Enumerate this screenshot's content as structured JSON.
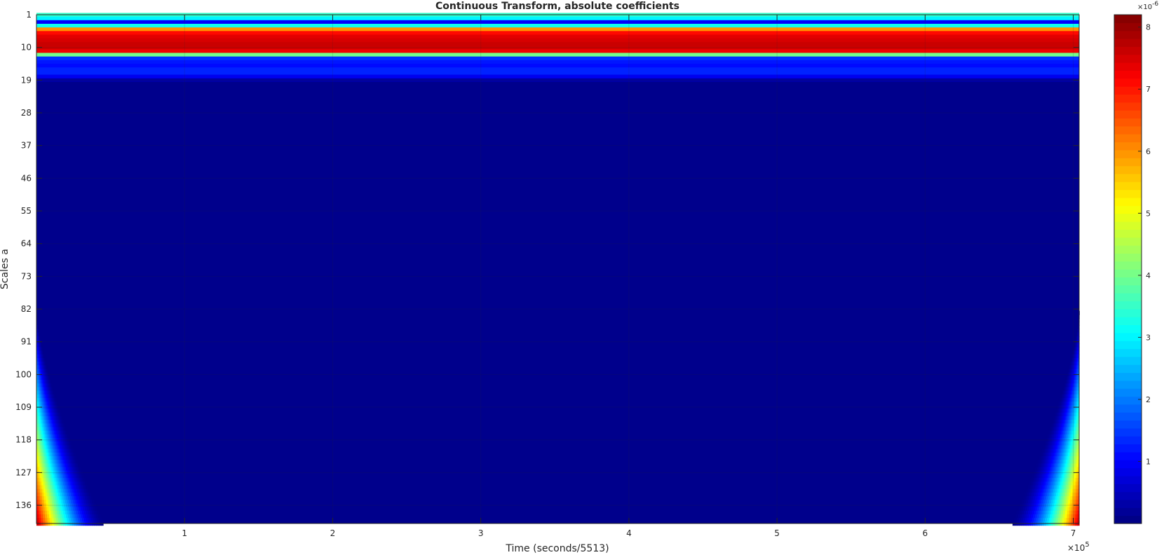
{
  "chart_data": {
    "type": "heatmap",
    "title": "Continuous Transform, absolute coefficients",
    "xlabel": "Time (seconds/5513)",
    "ylabel": "Scales a",
    "x_exponent_label": "×10",
    "x_exponent": "5",
    "xlim": [
      0,
      704000
    ],
    "x_ticks": [
      100000,
      200000,
      300000,
      400000,
      500000,
      600000,
      700000
    ],
    "x_tick_labels": [
      "1",
      "2",
      "3",
      "4",
      "5",
      "6",
      "7"
    ],
    "ylim": [
      1,
      141
    ],
    "y_direction": "reverse",
    "y_ticks": [
      1,
      10,
      19,
      28,
      37,
      46,
      55,
      64,
      73,
      82,
      91,
      100,
      109,
      118,
      127,
      136
    ],
    "y_tick_labels": [
      "1",
      "10",
      "19",
      "28",
      "37",
      "46",
      "55",
      "64",
      "73",
      "82",
      "91",
      "100",
      "109",
      "118",
      "127",
      "136"
    ],
    "colormap": "jet",
    "colorbar": {
      "location": "right",
      "range": [
        0,
        8.2
      ],
      "ticks": [
        1,
        2,
        3,
        4,
        5,
        6,
        7,
        8
      ],
      "tick_labels": [
        "1",
        "2",
        "3",
        "4",
        "5",
        "6",
        "7",
        "8"
      ],
      "exponent_label": "×10",
      "exponent": "-6"
    },
    "scale_profile_1e-6": [
      {
        "scale": 1,
        "value": 3.5
      },
      {
        "scale": 2,
        "value": 3.0
      },
      {
        "scale": 3,
        "value": 1.0
      },
      {
        "scale": 4,
        "value": 3.2
      },
      {
        "scale": 5,
        "value": 6.0
      },
      {
        "scale": 6,
        "value": 7.1
      },
      {
        "scale": 7,
        "value": 7.4
      },
      {
        "scale": 8,
        "value": 7.5
      },
      {
        "scale": 9,
        "value": 7.6
      },
      {
        "scale": 10,
        "value": 7.6
      },
      {
        "scale": 11,
        "value": 7.3
      },
      {
        "scale": 12,
        "value": 4.0
      },
      {
        "scale": 13,
        "value": 1.4
      },
      {
        "scale": 14,
        "value": 1.2
      },
      {
        "scale": 15,
        "value": 1.1
      },
      {
        "scale": 16,
        "value": 1.3
      },
      {
        "scale": 17,
        "value": 1.3
      },
      {
        "scale": 18,
        "value": 0.9
      },
      {
        "scale": 19,
        "value": 0.3
      },
      {
        "scale": 20,
        "value": 0.1
      }
    ],
    "background_value_1e-6": 0.1,
    "edge_effect": {
      "description": "cone of influence at both time edges for large scales",
      "start_scale": 82,
      "max_value_1e-6": 7.6,
      "width_at_max_scale_x": 45000
    },
    "grid": true
  }
}
